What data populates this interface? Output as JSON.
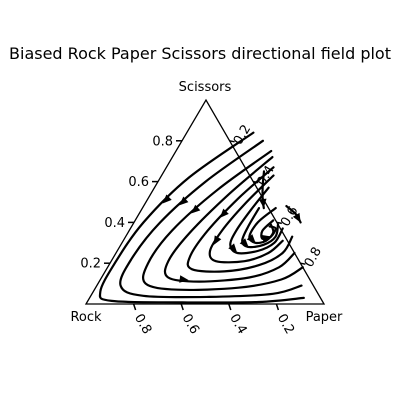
{
  "chart_data": {
    "type": "ternary-streamplot",
    "title": "Biased Rock Paper Scissors directional field plot",
    "vertices": {
      "top": "Scissors",
      "left": "Rock",
      "right": "Paper"
    },
    "ticks": [
      0.2,
      0.4,
      0.6,
      0.8
    ],
    "tick_labels": [
      "0.2",
      "0.4",
      "0.6",
      "0.8"
    ],
    "grid": false,
    "line_color": "#000000",
    "streamlines": [
      {
        "name": "",
        "arrow_at": [
          0.4,
          0.38
        ],
        "points": [
          [
            0.28,
            0.84
          ],
          [
            0.12,
            0.62
          ],
          [
            0.04,
            0.4
          ],
          [
            0.02,
            0.2
          ],
          [
            0.03,
            0.06
          ],
          [
            0.1,
            0.015
          ],
          [
            0.4,
            0.008
          ],
          [
            0.72,
            0.01
          ],
          [
            0.9,
            0.03
          ]
        ]
      },
      {
        "name": "",
        "arrow_at": [
          0.44,
          0.36
        ],
        "points": [
          [
            0.34,
            0.8
          ],
          [
            0.2,
            0.6
          ],
          [
            0.11,
            0.4
          ],
          [
            0.08,
            0.22
          ],
          [
            0.1,
            0.09
          ],
          [
            0.22,
            0.04
          ],
          [
            0.5,
            0.035
          ],
          [
            0.76,
            0.05
          ],
          [
            0.86,
            0.09
          ]
        ]
      },
      {
        "name": "",
        "arrow_at": [
          0.35,
          0.32
        ],
        "points": [
          [
            0.4,
            0.75
          ],
          [
            0.27,
            0.56
          ],
          [
            0.18,
            0.36
          ],
          [
            0.16,
            0.2
          ],
          [
            0.2,
            0.1
          ],
          [
            0.35,
            0.07
          ],
          [
            0.6,
            0.08
          ],
          [
            0.76,
            0.12
          ],
          [
            0.82,
            0.18
          ]
        ]
      },
      {
        "name": "",
        "arrow_at": [
          0.35,
          0.19
        ],
        "points": [
          [
            0.42,
            0.72
          ],
          [
            0.33,
            0.54
          ],
          [
            0.26,
            0.35
          ],
          [
            0.24,
            0.21
          ],
          [
            0.28,
            0.13
          ],
          [
            0.42,
            0.11
          ],
          [
            0.62,
            0.13
          ],
          [
            0.72,
            0.18
          ],
          [
            0.75,
            0.25
          ]
        ]
      },
      {
        "name": "",
        "arrow_at": [
          0.42,
          0.34
        ],
        "points": [
          [
            0.45,
            0.67
          ],
          [
            0.38,
            0.52
          ],
          [
            0.33,
            0.36
          ],
          [
            0.32,
            0.23
          ],
          [
            0.36,
            0.17
          ],
          [
            0.5,
            0.16
          ],
          [
            0.63,
            0.19
          ],
          [
            0.7,
            0.25
          ],
          [
            0.7,
            0.33
          ]
        ]
      },
      {
        "name": "",
        "arrow_at": [
          0.42,
          0.3
        ],
        "points": [
          [
            0.47,
            0.63
          ],
          [
            0.42,
            0.49
          ],
          [
            0.39,
            0.36
          ],
          [
            0.39,
            0.26
          ],
          [
            0.44,
            0.21
          ],
          [
            0.56,
            0.21
          ],
          [
            0.64,
            0.25
          ],
          [
            0.67,
            0.31
          ]
        ]
      },
      {
        "name": "",
        "arrow_at": [
          0.45,
          0.28
        ],
        "points": [
          [
            0.48,
            0.57
          ],
          [
            0.46,
            0.46
          ],
          [
            0.45,
            0.36
          ],
          [
            0.46,
            0.29
          ],
          [
            0.51,
            0.25
          ],
          [
            0.59,
            0.26
          ],
          [
            0.64,
            0.3
          ],
          [
            0.64,
            0.37
          ]
        ]
      },
      {
        "name": "",
        "arrow_at": [
          0.49,
          0.27
        ],
        "points": [
          [
            0.49,
            0.47
          ],
          [
            0.49,
            0.38
          ],
          [
            0.5,
            0.31
          ],
          [
            0.54,
            0.28
          ],
          [
            0.6,
            0.29
          ],
          [
            0.63,
            0.33
          ],
          [
            0.61,
            0.39
          ]
        ]
      },
      {
        "name": "",
        "arrow_at": [
          0.54,
          0.29
        ],
        "points": [
          [
            0.56,
            0.47
          ],
          [
            0.52,
            0.4
          ],
          [
            0.52,
            0.33
          ],
          [
            0.56,
            0.3
          ],
          [
            0.6,
            0.31
          ],
          [
            0.61,
            0.35
          ],
          [
            0.58,
            0.39
          ]
        ]
      },
      {
        "name": "",
        "arrow_at": [
          0.59,
          0.34
        ],
        "points": [
          [
            0.58,
            0.41
          ],
          [
            0.56,
            0.36
          ],
          [
            0.58,
            0.32
          ],
          [
            0.61,
            0.33
          ],
          [
            0.61,
            0.37
          ],
          [
            0.58,
            0.38
          ]
        ]
      },
      {
        "name": "",
        "arrow_at": [
          0.49,
          0.51
        ],
        "points": [
          [
            0.42,
            0.65
          ],
          [
            0.45,
            0.58
          ],
          [
            0.48,
            0.52
          ],
          [
            0.51,
            0.47
          ]
        ]
      },
      {
        "name": "",
        "arrow_at": [
          0.66,
          0.44
        ],
        "points": [
          [
            0.6,
            0.48
          ],
          [
            0.66,
            0.44
          ],
          [
            0.7,
            0.4
          ]
        ]
      }
    ]
  }
}
